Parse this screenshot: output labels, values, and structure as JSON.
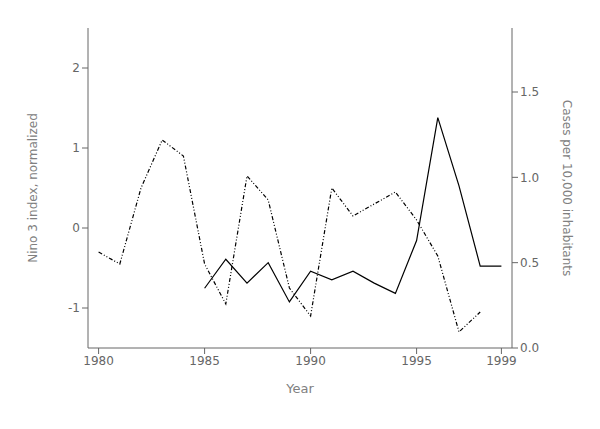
{
  "chart_data": {
    "type": "line",
    "xlabel": "Year",
    "ylabel": "Nino 3 index, normalized",
    "y2label": "Cases per 10,000 inhabitants",
    "x": [
      1980,
      1981,
      1982,
      1983,
      1984,
      1985,
      1986,
      1987,
      1988,
      1989,
      1990,
      1991,
      1992,
      1993,
      1994,
      1995,
      1996,
      1997,
      1998,
      1999
    ],
    "series": [
      {
        "color": "#000000",
        "line_style": "dashdotdot",
        "values": [
          -0.3,
          -0.45,
          0.5,
          1.1,
          0.9,
          -0.45,
          -0.95,
          0.65,
          0.35,
          -0.75,
          -1.1,
          0.5,
          0.15,
          0.3,
          0.45,
          0.1,
          -0.35,
          -1.3,
          -1.05,
          null
        ]
      },
      {
        "color": "#000000",
        "line_style": "solid",
        "axis": "y2",
        "values": [
          null,
          null,
          null,
          null,
          null,
          0.35,
          0.52,
          0.38,
          0.5,
          0.27,
          0.45,
          0.4,
          0.45,
          0.38,
          0.32,
          0.63,
          1.35,
          0.95,
          0.48,
          0.48
        ]
      }
    ],
    "xlim": [
      1979.5,
      1999.5
    ],
    "xticks": [
      1980,
      1985,
      1990,
      1995,
      1999
    ],
    "ylim": [
      -1.5,
      2.5
    ],
    "yticks": [
      -1,
      0,
      1,
      2
    ],
    "y2lim": [
      0.0,
      1.875
    ],
    "y2ticks": [
      {
        "value": 0,
        "label": "0.0"
      },
      0.5,
      {
        "value": 1,
        "label": "1.0"
      },
      1.5
    ],
    "grid": false
  }
}
